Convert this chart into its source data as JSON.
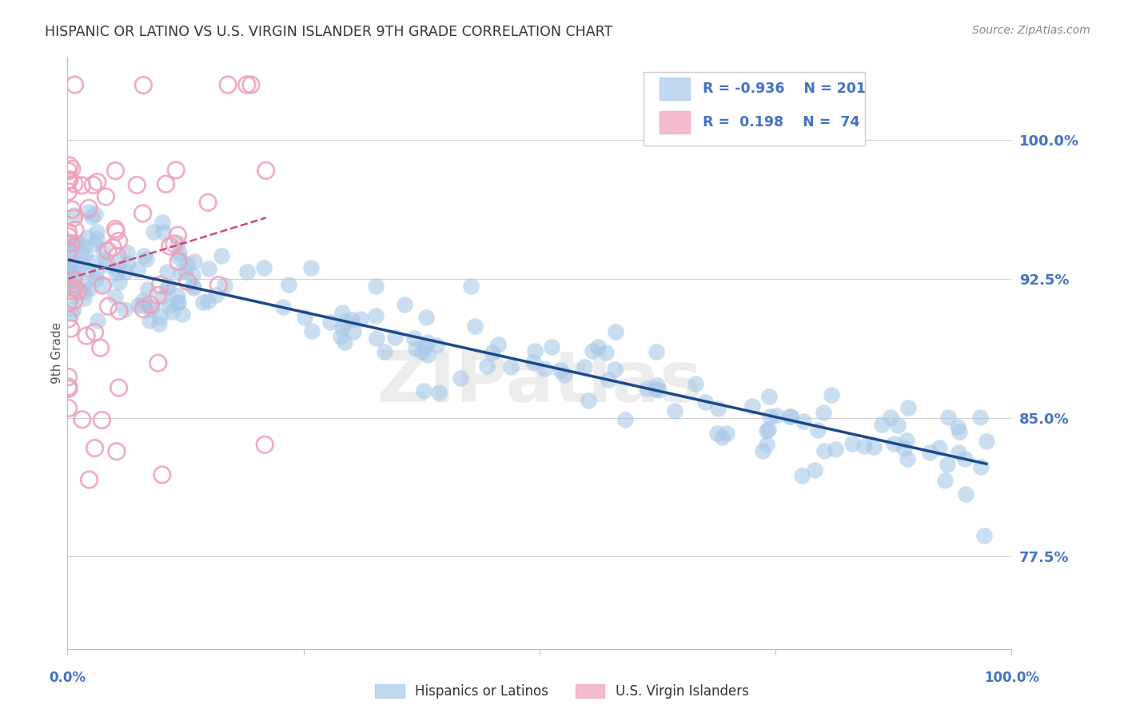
{
  "title": "HISPANIC OR LATINO VS U.S. VIRGIN ISLANDER 9TH GRADE CORRELATION CHART",
  "source": "Source: ZipAtlas.com",
  "ylabel": "9th Grade",
  "ytick_labels": [
    "77.5%",
    "85.0%",
    "92.5%",
    "100.0%"
  ],
  "ytick_values": [
    0.775,
    0.85,
    0.925,
    1.0
  ],
  "xmin": 0.0,
  "xmax": 1.0,
  "ymin": 0.725,
  "ymax": 1.045,
  "legend_blue_R": "-0.936",
  "legend_blue_N": "201",
  "legend_pink_R": "0.198",
  "legend_pink_N": "74",
  "legend_label_blue": "Hispanics or Latinos",
  "legend_label_pink": "U.S. Virgin Islanders",
  "blue_scatter_color": "#a8c8e8",
  "blue_line_color": "#1a4a8a",
  "pink_scatter_color": "#f0a0b8",
  "pink_line_color": "#d04878",
  "watermark": "ZIPatlas",
  "title_color": "#333333",
  "ylabel_color": "#555555",
  "tick_label_color": "#4472c4",
  "grid_color": "#d0d0d0",
  "source_color": "#888888"
}
